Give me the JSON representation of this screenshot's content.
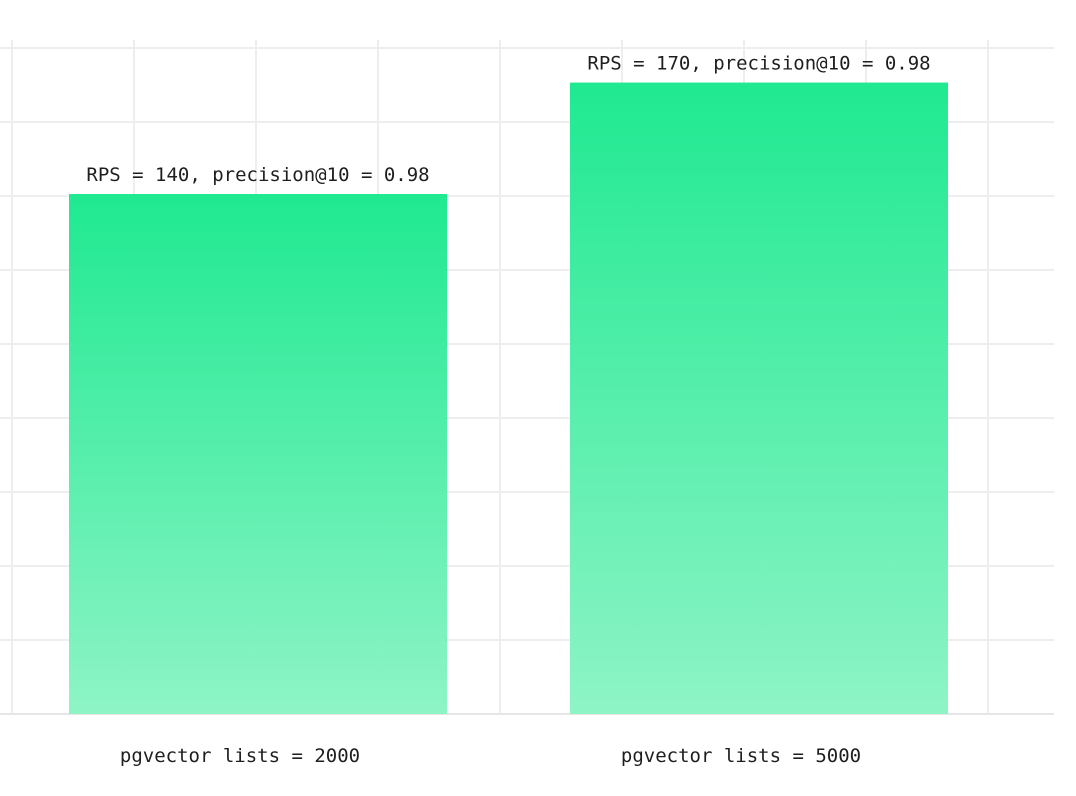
{
  "chart_data": {
    "type": "bar",
    "title": "",
    "xlabel": "",
    "ylabel": "",
    "categories": [
      "pgvector lists = 2000",
      "pgvector lists = 5000"
    ],
    "series": [
      {
        "values": [
          140,
          170
        ],
        "data_labels": [
          "RPS = 140, precision@10 = 0.98",
          "RPS = 170, precision@10 = 0.98"
        ]
      }
    ],
    "ylim": [
      0,
      180
    ],
    "grid": true,
    "legend": "none",
    "colors": {
      "bar_top": "#1fe991",
      "bar_bottom": "#8ef4c6",
      "grid": "#eeeeee",
      "text": "#1e1e1e"
    }
  }
}
